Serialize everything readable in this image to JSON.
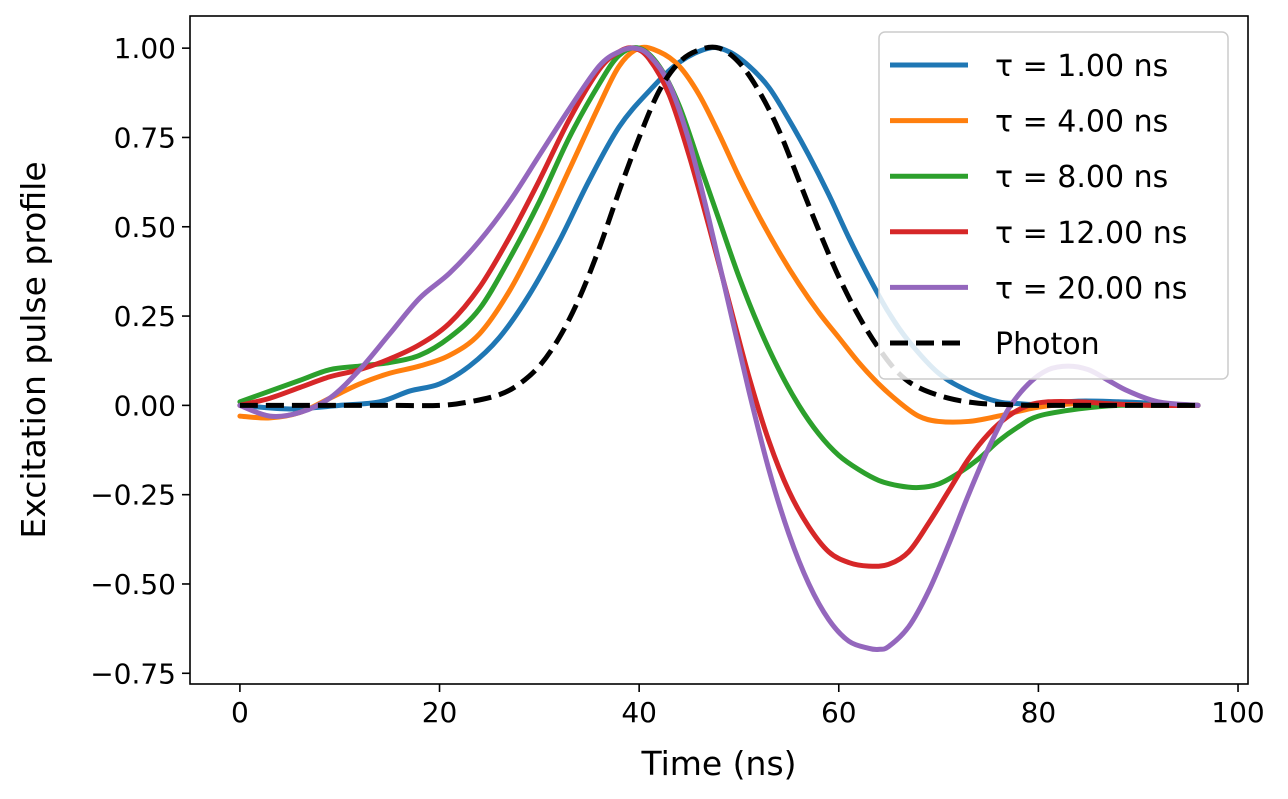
{
  "chart_data": {
    "type": "line",
    "title": "",
    "xlabel": "Time (ns)",
    "ylabel": "Excitation pulse profile",
    "xlim": [
      -5,
      101
    ],
    "ylim": [
      -0.78,
      1.09
    ],
    "xticks": [
      0,
      20,
      40,
      60,
      80,
      100
    ],
    "xtick_labels": [
      "0",
      "20",
      "40",
      "60",
      "80",
      "100"
    ],
    "yticks": [
      1.0,
      0.75,
      0.5,
      0.25,
      0.0,
      -0.25,
      -0.5,
      -0.75
    ],
    "ytick_labels": [
      "1.00",
      "0.75",
      "0.50",
      "0.25",
      "0.00",
      "−0.25",
      "−0.50",
      "−0.75"
    ],
    "grid": false,
    "legend_position": "top-right",
    "series": [
      {
        "name": "τ = 1.00 ns",
        "color": "#1f77b4",
        "style": "solid",
        "x": [
          0,
          5,
          10,
          14,
          17,
          20,
          23,
          26,
          29,
          32,
          35,
          38,
          41,
          44,
          47,
          49,
          51,
          53,
          55,
          57,
          59,
          61,
          63,
          65,
          67,
          70,
          73,
          76,
          78,
          80,
          84,
          88,
          92,
          96
        ],
        "y": [
          0.0,
          -0.01,
          0.0,
          0.01,
          0.04,
          0.06,
          0.11,
          0.19,
          0.31,
          0.46,
          0.63,
          0.78,
          0.88,
          0.96,
          1.0,
          0.99,
          0.95,
          0.89,
          0.8,
          0.7,
          0.59,
          0.47,
          0.36,
          0.26,
          0.18,
          0.09,
          0.04,
          0.01,
          0.005,
          0.003,
          0.012,
          0.01,
          0.005,
          0.0
        ]
      },
      {
        "name": "τ = 4.00 ns",
        "color": "#ff7f0e",
        "style": "solid",
        "x": [
          0,
          3,
          6,
          9,
          12,
          15,
          18,
          21,
          24,
          27,
          30,
          33,
          36,
          38,
          40,
          42,
          44,
          46,
          48,
          50,
          52,
          54,
          56,
          58,
          60,
          62,
          64,
          66,
          68,
          70,
          73,
          76,
          80,
          84,
          88,
          92,
          96
        ],
        "y": [
          -0.03,
          -0.035,
          -0.02,
          0.02,
          0.06,
          0.09,
          0.11,
          0.14,
          0.2,
          0.32,
          0.48,
          0.66,
          0.84,
          0.95,
          1.0,
          0.99,
          0.95,
          0.87,
          0.76,
          0.64,
          0.53,
          0.43,
          0.34,
          0.26,
          0.19,
          0.12,
          0.06,
          0.01,
          -0.03,
          -0.045,
          -0.045,
          -0.03,
          -0.005,
          0.005,
          0.003,
          0.0,
          0.0
        ]
      },
      {
        "name": "τ = 8.00 ns",
        "color": "#2ca02c",
        "style": "solid",
        "x": [
          0,
          3,
          6,
          9,
          12,
          15,
          18,
          21,
          24,
          27,
          30,
          33,
          36,
          38,
          40,
          42,
          44,
          46,
          48,
          50,
          52,
          54,
          56,
          58,
          60,
          62,
          64,
          66,
          68,
          70,
          72,
          74,
          76,
          78,
          80,
          84,
          88,
          92,
          96
        ],
        "y": [
          0.01,
          0.04,
          0.07,
          0.1,
          0.11,
          0.12,
          0.14,
          0.19,
          0.27,
          0.41,
          0.57,
          0.75,
          0.9,
          0.98,
          1.0,
          0.95,
          0.84,
          0.68,
          0.52,
          0.36,
          0.22,
          0.1,
          0.0,
          -0.08,
          -0.14,
          -0.18,
          -0.21,
          -0.225,
          -0.23,
          -0.22,
          -0.19,
          -0.15,
          -0.1,
          -0.06,
          -0.03,
          -0.01,
          0.0,
          0.0,
          0.0
        ]
      },
      {
        "name": "τ = 12.00 ns",
        "color": "#d62728",
        "style": "solid",
        "x": [
          0,
          3,
          6,
          9,
          12,
          15,
          18,
          21,
          24,
          27,
          30,
          33,
          36,
          38,
          39.5,
          41,
          43,
          45,
          47,
          49,
          51,
          53,
          55,
          57,
          59,
          61,
          63,
          65,
          67,
          69,
          71,
          73,
          75,
          77,
          79,
          81,
          84,
          88,
          92,
          96
        ],
        "y": [
          0.0,
          0.02,
          0.05,
          0.08,
          0.1,
          0.13,
          0.17,
          0.23,
          0.33,
          0.47,
          0.63,
          0.8,
          0.94,
          0.99,
          1.0,
          0.97,
          0.87,
          0.7,
          0.5,
          0.29,
          0.08,
          -0.1,
          -0.24,
          -0.34,
          -0.41,
          -0.44,
          -0.45,
          -0.445,
          -0.41,
          -0.33,
          -0.24,
          -0.15,
          -0.08,
          -0.03,
          0.0,
          0.01,
          0.01,
          0.003,
          0.0,
          0.0
        ]
      },
      {
        "name": "τ = 20.00 ns",
        "color": "#9467bd",
        "style": "solid",
        "x": [
          0,
          3,
          6,
          9,
          12,
          15,
          18,
          21,
          24,
          27,
          30,
          33,
          36,
          38,
          39.5,
          41,
          43,
          45,
          47,
          49,
          51,
          53,
          55,
          57,
          59,
          61,
          63,
          64,
          65,
          67,
          69,
          71,
          73,
          75,
          77,
          79,
          81,
          83,
          85,
          87,
          89,
          92,
          96
        ],
        "y": [
          0.0,
          -0.03,
          -0.02,
          0.02,
          0.1,
          0.2,
          0.3,
          0.37,
          0.46,
          0.57,
          0.7,
          0.83,
          0.95,
          0.99,
          1.0,
          0.98,
          0.9,
          0.74,
          0.52,
          0.28,
          0.04,
          -0.18,
          -0.36,
          -0.5,
          -0.6,
          -0.66,
          -0.68,
          -0.683,
          -0.675,
          -0.62,
          -0.52,
          -0.39,
          -0.25,
          -0.12,
          -0.01,
          0.06,
          0.1,
          0.11,
          0.1,
          0.07,
          0.04,
          0.01,
          0.0
        ]
      },
      {
        "name": "Photon",
        "color": "#000000",
        "style": "dashed",
        "x": [
          0,
          5,
          10,
          15,
          20,
          23,
          26,
          28,
          30,
          32,
          34,
          36,
          38,
          40,
          42,
          44,
          46,
          48,
          50,
          52,
          54,
          56,
          58,
          60,
          62,
          64,
          66,
          68,
          71,
          74,
          77,
          80,
          85,
          90,
          96
        ],
        "y": [
          0.0,
          0.0,
          0.0,
          0.0,
          0.0,
          0.01,
          0.03,
          0.06,
          0.11,
          0.19,
          0.3,
          0.44,
          0.6,
          0.75,
          0.88,
          0.96,
          0.995,
          1.0,
          0.96,
          0.88,
          0.77,
          0.63,
          0.49,
          0.36,
          0.25,
          0.16,
          0.09,
          0.05,
          0.02,
          0.006,
          0.002,
          0.0,
          0.0,
          0.0,
          0.0
        ]
      }
    ]
  }
}
